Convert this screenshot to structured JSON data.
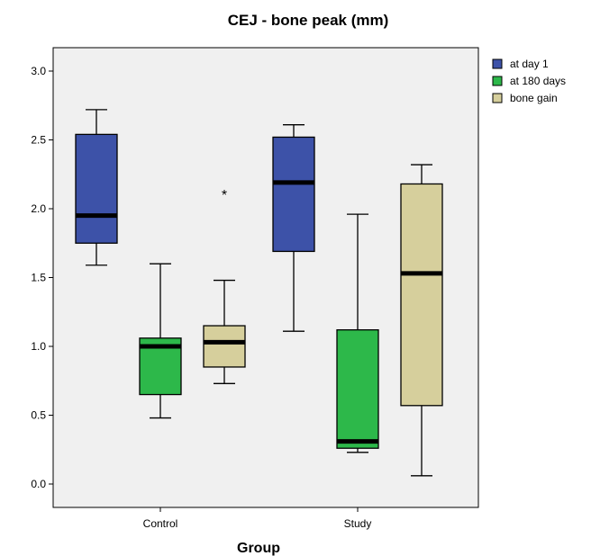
{
  "chart_data": {
    "type": "boxplot",
    "title": "CEJ - bone peak (mm)",
    "xlabel": "Group",
    "ylabel": "",
    "ylim": [
      -0.15,
      3.25
    ],
    "yticks": [
      "0.0",
      "0.5",
      "1.0",
      "1.5",
      "2.0",
      "2.5",
      "3.0"
    ],
    "ytick_values": [
      0.0,
      0.5,
      1.0,
      1.5,
      2.0,
      2.5,
      3.0
    ],
    "categories": [
      "Control",
      "Study"
    ],
    "legend_position": "top-right",
    "background_color": "#f0f0f0",
    "series": [
      {
        "name": "at day 1",
        "color": "#3d52a8",
        "boxes": [
          {
            "min": 1.59,
            "q1": 1.75,
            "median": 1.95,
            "q3": 2.54,
            "max": 2.72,
            "outliers": []
          },
          {
            "min": 1.11,
            "q1": 1.69,
            "median": 2.19,
            "q3": 2.52,
            "max": 2.61,
            "outliers": []
          }
        ]
      },
      {
        "name": "at 180 days",
        "color": "#2db84a",
        "boxes": [
          {
            "min": 0.48,
            "q1": 0.65,
            "median": 1.0,
            "q3": 1.06,
            "max": 1.6,
            "outliers": []
          },
          {
            "min": 0.23,
            "q1": 0.26,
            "median": 0.31,
            "q3": 1.12,
            "max": 1.96,
            "outliers": []
          }
        ]
      },
      {
        "name": "bone gain",
        "color": "#d6cf9c",
        "boxes": [
          {
            "min": 0.73,
            "q1": 0.85,
            "median": 1.03,
            "q3": 1.15,
            "max": 1.48,
            "outliers": [
              2.13
            ]
          },
          {
            "min": 0.06,
            "q1": 0.57,
            "median": 1.53,
            "q3": 2.18,
            "max": 2.32,
            "outliers": []
          }
        ]
      }
    ]
  }
}
